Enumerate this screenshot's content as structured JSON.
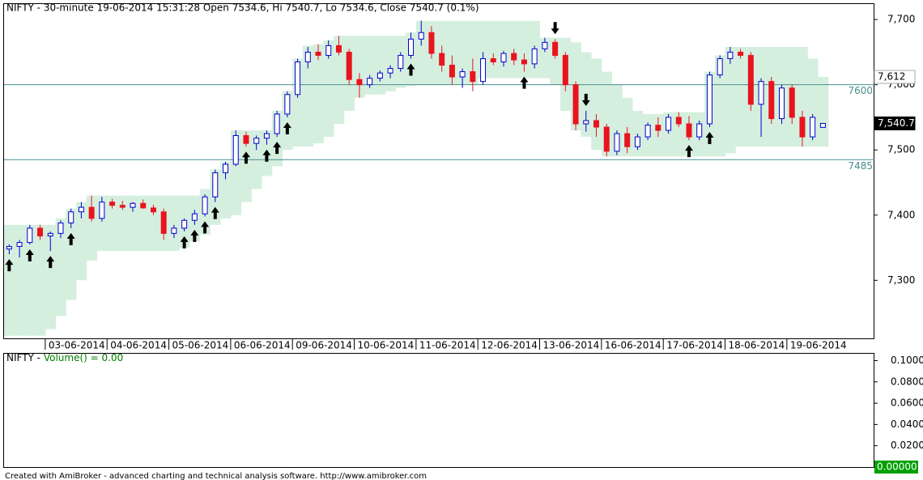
{
  "chart_data": [
    {
      "type": "candlestick",
      "title": "NIFTY - 30-minute 19-06-2014 15:31:28 Open 7534.6, Hi 7540.7, Lo 7534.6, Close 7540.7 (0.1%)",
      "ohlc": [
        [
          7348,
          7355,
          7340,
          7352
        ],
        [
          7352,
          7362,
          7335,
          7358
        ],
        [
          7358,
          7385,
          7355,
          7380
        ],
        [
          7380,
          7385,
          7362,
          7368
        ],
        [
          7368,
          7375,
          7345,
          7372
        ],
        [
          7372,
          7392,
          7365,
          7388
        ],
        [
          7388,
          7410,
          7380,
          7405
        ],
        [
          7405,
          7420,
          7395,
          7412
        ],
        [
          7412,
          7430,
          7390,
          7395
        ],
        [
          7395,
          7428,
          7390,
          7420
        ],
        [
          7420,
          7425,
          7410,
          7415
        ],
        [
          7415,
          7422,
          7408,
          7412
        ],
        [
          7412,
          7420,
          7405,
          7418
        ],
        [
          7418,
          7424,
          7410,
          7411
        ],
        [
          7411,
          7416,
          7400,
          7405
        ],
        [
          7405,
          7410,
          7362,
          7372
        ],
        [
          7372,
          7385,
          7365,
          7380
        ],
        [
          7380,
          7395,
          7375,
          7392
        ],
        [
          7392,
          7408,
          7385,
          7402
        ],
        [
          7402,
          7432,
          7398,
          7428
        ],
        [
          7428,
          7470,
          7420,
          7465
        ],
        [
          7465,
          7482,
          7455,
          7478
        ],
        [
          7478,
          7530,
          7475,
          7522
        ],
        [
          7522,
          7528,
          7505,
          7510
        ],
        [
          7510,
          7522,
          7500,
          7518
        ],
        [
          7518,
          7530,
          7508,
          7525
        ],
        [
          7525,
          7560,
          7520,
          7555
        ],
        [
          7555,
          7590,
          7550,
          7585
        ],
        [
          7585,
          7640,
          7580,
          7635
        ],
        [
          7635,
          7658,
          7625,
          7650
        ],
        [
          7650,
          7662,
          7638,
          7645
        ],
        [
          7645,
          7668,
          7640,
          7660
        ],
        [
          7660,
          7675,
          7645,
          7650
        ],
        [
          7650,
          7655,
          7600,
          7608
        ],
        [
          7608,
          7618,
          7580,
          7600
        ],
        [
          7600,
          7615,
          7595,
          7610
        ],
        [
          7610,
          7622,
          7605,
          7618
        ],
        [
          7618,
          7630,
          7610,
          7625
        ],
        [
          7625,
          7650,
          7620,
          7645
        ],
        [
          7645,
          7680,
          7640,
          7670
        ],
        [
          7670,
          7698,
          7660,
          7680
        ],
        [
          7680,
          7690,
          7640,
          7648
        ],
        [
          7648,
          7660,
          7620,
          7630
        ],
        [
          7630,
          7645,
          7600,
          7612
        ],
        [
          7612,
          7625,
          7595,
          7620
        ],
        [
          7620,
          7640,
          7590,
          7605
        ],
        [
          7605,
          7650,
          7600,
          7640
        ],
        [
          7640,
          7648,
          7630,
          7635
        ],
        [
          7635,
          7652,
          7628,
          7648
        ],
        [
          7648,
          7655,
          7630,
          7638
        ],
        [
          7638,
          7648,
          7620,
          7632
        ],
        [
          7632,
          7660,
          7625,
          7655
        ],
        [
          7655,
          7672,
          7650,
          7665
        ],
        [
          7665,
          7670,
          7640,
          7645
        ],
        [
          7645,
          7650,
          7590,
          7600
        ],
        [
          7600,
          7605,
          7530,
          7540
        ],
        [
          7540,
          7560,
          7528,
          7545
        ],
        [
          7545,
          7555,
          7520,
          7535
        ],
        [
          7535,
          7540,
          7490,
          7498
        ],
        [
          7498,
          7530,
          7492,
          7525
        ],
        [
          7525,
          7535,
          7495,
          7505
        ],
        [
          7505,
          7525,
          7500,
          7520
        ],
        [
          7520,
          7542,
          7515,
          7538
        ],
        [
          7538,
          7550,
          7520,
          7530
        ],
        [
          7530,
          7555,
          7525,
          7550
        ],
        [
          7550,
          7558,
          7535,
          7540
        ],
        [
          7540,
          7552,
          7515,
          7520
        ],
        [
          7520,
          7545,
          7515,
          7540
        ],
        [
          7540,
          7620,
          7535,
          7615
        ],
        [
          7615,
          7645,
          7610,
          7640
        ],
        [
          7640,
          7658,
          7632,
          7650
        ],
        [
          7650,
          7655,
          7640,
          7645
        ],
        [
          7645,
          7650,
          7560,
          7570
        ],
        [
          7570,
          7610,
          7520,
          7605
        ],
        [
          7605,
          7612,
          7540,
          7548
        ],
        [
          7548,
          7600,
          7540,
          7595
        ],
        [
          7595,
          7600,
          7540,
          7550
        ],
        [
          7550,
          7560,
          7505,
          7520
        ],
        [
          7520,
          7555,
          7515,
          7550
        ],
        [
          7534.6,
          7540.7,
          7534.6,
          7540.7
        ]
      ],
      "up_color": "#0000cc",
      "down_color": "#e8141e",
      "cloud": {
        "color": "#d5efdf",
        "upper": [
          7385,
          7385,
          7385,
          7385,
          7385,
          7395,
          7410,
          7420,
          7430,
          7430,
          7430,
          7430,
          7430,
          7430,
          7430,
          7430,
          7430,
          7430,
          7430,
          7440,
          7470,
          7482,
          7530,
          7530,
          7530,
          7530,
          7560,
          7590,
          7640,
          7660,
          7662,
          7668,
          7675,
          7675,
          7675,
          7675,
          7675,
          7675,
          7675,
          7680,
          7698,
          7698,
          7698,
          7698,
          7698,
          7698,
          7698,
          7698,
          7698,
          7698,
          7698,
          7698,
          7672,
          7672,
          7672,
          7665,
          7650,
          7640,
          7620,
          7600,
          7580,
          7560,
          7555,
          7555,
          7558,
          7558,
          7558,
          7558,
          7620,
          7645,
          7658,
          7658,
          7658,
          7658,
          7658,
          7658,
          7658,
          7658,
          7640,
          7612
        ],
        "lower": [
          7215,
          7215,
          7215,
          7215,
          7225,
          7245,
          7270,
          7300,
          7330,
          7345,
          7345,
          7345,
          7345,
          7345,
          7345,
          7345,
          7345,
          7350,
          7360,
          7370,
          7385,
          7395,
          7400,
          7420,
          7440,
          7460,
          7475,
          7500,
          7505,
          7505,
          7510,
          7520,
          7540,
          7560,
          7580,
          7585,
          7585,
          7590,
          7595,
          7598,
          7600,
          7600,
          7600,
          7600,
          7600,
          7600,
          7610,
          7610,
          7610,
          7610,
          7610,
          7610,
          7610,
          7600,
          7560,
          7530,
          7520,
          7500,
          7490,
          7490,
          7490,
          7490,
          7490,
          7490,
          7490,
          7490,
          7490,
          7490,
          7490,
          7490,
          7495,
          7505,
          7505,
          7505,
          7505,
          7505,
          7505,
          7505,
          7505,
          7505
        ]
      },
      "buy_signals": [
        0,
        2,
        4,
        6,
        17,
        18,
        19,
        20,
        23,
        25,
        26,
        27,
        39,
        50,
        66,
        68
      ],
      "sell_signals": [
        53,
        56
      ],
      "signal_color": "#000000",
      "levels": [
        7600,
        7485
      ],
      "level_color": "#4a8f8f",
      "markers": [
        {
          "value": 7612,
          "label": "7,612"
        },
        {
          "value": 7540.7,
          "label": "7,540.7"
        }
      ],
      "xlim": [
        -0.5,
        84
      ],
      "xticks": [
        {
          "value": 3.5,
          "label": "03-06-2014"
        },
        {
          "value": 9.5,
          "label": "04-06-2014"
        },
        {
          "value": 15.5,
          "label": "05-06-2014"
        },
        {
          "value": 21.5,
          "label": "06-06-2014"
        },
        {
          "value": 27.5,
          "label": "09-06-2014"
        },
        {
          "value": 33.5,
          "label": "10-06-2014"
        },
        {
          "value": 39.5,
          "label": "11-06-2014"
        },
        {
          "value": 45.5,
          "label": "12-06-2014"
        },
        {
          "value": 51.5,
          "label": "13-06-2014"
        },
        {
          "value": 57.5,
          "label": "16-06-2014"
        },
        {
          "value": 63.5,
          "label": "17-06-2014"
        },
        {
          "value": 69.5,
          "label": "18-06-2014"
        },
        {
          "value": 75.5,
          "label": "19-06-2014"
        }
      ],
      "ylim": [
        7211,
        7723.75
      ],
      "yticks": [
        {
          "value": 7300,
          "label": "7,300"
        },
        {
          "value": 7400,
          "label": "7,400"
        },
        {
          "value": 7500,
          "label": "7,500"
        },
        {
          "value": 7600,
          "label": "7,600"
        },
        {
          "value": 7700,
          "label": "7,700"
        }
      ]
    },
    {
      "type": "volume",
      "title": "NIFTY - ",
      "indicator": "Volume() = 0.00",
      "indicator_color": "#008000",
      "ylim": [
        0,
        0.1072
      ],
      "yticks": [
        {
          "value": 0.02,
          "label": "0.0200"
        },
        {
          "value": 0.04,
          "label": "0.0400"
        },
        {
          "value": 0.06,
          "label": "0.0600"
        },
        {
          "value": 0.08,
          "label": "0.0800"
        },
        {
          "value": 0.1,
          "label": "0.1000"
        }
      ],
      "last_value": {
        "value": 0,
        "label": "0.00000"
      },
      "last_color": "#00a000"
    }
  ],
  "footer": "Created with AmiBroker - advanced charting and technical analysis software. http://www.amibroker.com"
}
